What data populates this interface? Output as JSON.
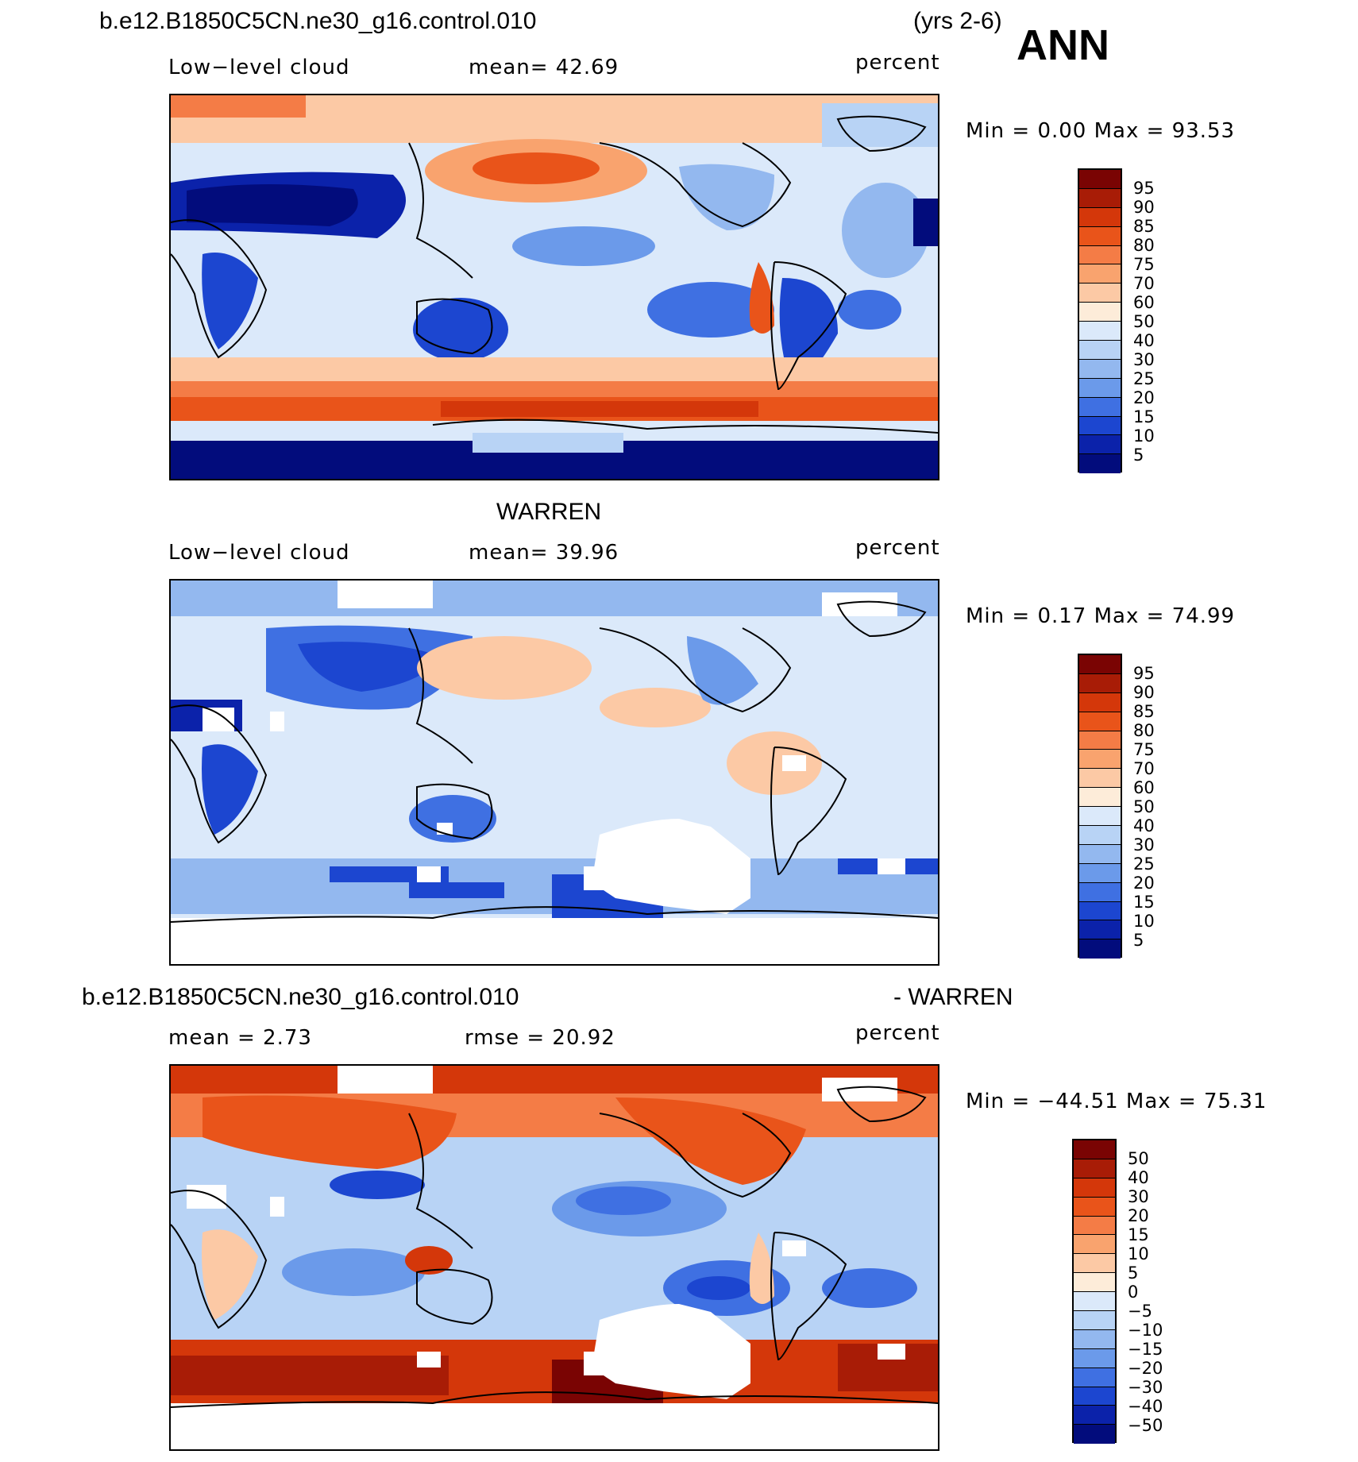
{
  "header": {
    "case_name": "b.e12.B1850C5CN.ne30_g16.control.010",
    "years": "(yrs 2-6)",
    "season": "ANN"
  },
  "panels": [
    {
      "id": "model",
      "variable": "Low−level cloud",
      "stat": "mean=   42.69",
      "units": "percent",
      "minmax": "Min =     0.00  Max =   93.53",
      "colorbar": {
        "labels": [
          "95",
          "90",
          "85",
          "80",
          "75",
          "70",
          "60",
          "50",
          "40",
          "30",
          "25",
          "20",
          "15",
          "10",
          "5"
        ],
        "colors": [
          "#7a0403",
          "#a81c06",
          "#d4370a",
          "#e9541a",
          "#f47c46",
          "#f9a36e",
          "#fcc9a5",
          "#fdecd9",
          "#dbe9fa",
          "#b8d3f5",
          "#93b8ef",
          "#6b9aea",
          "#3f70e2",
          "#1c46d0",
          "#0b22aa",
          "#020c7c"
        ]
      }
    },
    {
      "id": "obs",
      "title": "WARREN",
      "variable": "Low−level cloud",
      "stat": "mean=   39.96",
      "units": "percent",
      "minmax": "Min =     0.17  Max =   74.99",
      "colorbar": {
        "labels": [
          "95",
          "90",
          "85",
          "80",
          "75",
          "70",
          "60",
          "50",
          "40",
          "30",
          "25",
          "20",
          "15",
          "10",
          "5"
        ],
        "colors": [
          "#7a0403",
          "#a81c06",
          "#d4370a",
          "#e9541a",
          "#f47c46",
          "#f9a36e",
          "#fcc9a5",
          "#fdecd9",
          "#dbe9fa",
          "#b8d3f5",
          "#93b8ef",
          "#6b9aea",
          "#3f70e2",
          "#1c46d0",
          "#0b22aa",
          "#020c7c"
        ]
      }
    },
    {
      "id": "diff",
      "title_left": "b.e12.B1850C5CN.ne30_g16.control.010",
      "title_right": "- WARREN",
      "variable": "mean =    2.73",
      "stat": "rmse =   20.92",
      "units": "percent",
      "minmax": "Min = −44.51  Max =   75.31",
      "colorbar": {
        "labels": [
          "50",
          "40",
          "30",
          "20",
          "15",
          "10",
          "5",
          "0",
          "−5",
          "−10",
          "−15",
          "−20",
          "−30",
          "−40",
          "−50"
        ],
        "colors": [
          "#7a0403",
          "#a81c06",
          "#d4370a",
          "#e9541a",
          "#f47c46",
          "#f9a36e",
          "#fcc9a5",
          "#fdecd9",
          "#dbe9fa",
          "#b8d3f5",
          "#93b8ef",
          "#6b9aea",
          "#3f70e2",
          "#1c46d0",
          "#0b22aa",
          "#020c7c"
        ]
      }
    }
  ]
}
